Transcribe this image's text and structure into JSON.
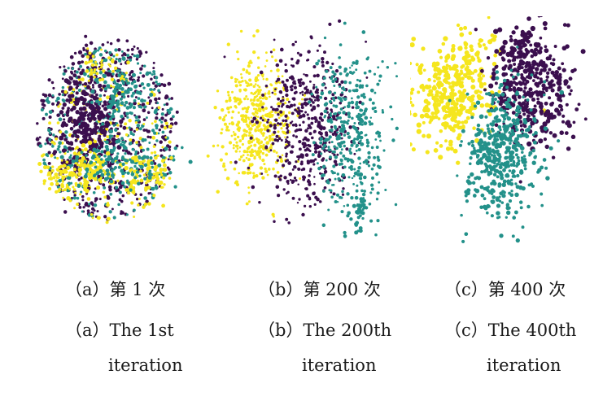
{
  "colors": {
    "purple": "#3b0f4e",
    "teal": "#23918a",
    "yellow": "#f5e61e"
  },
  "chart_data": [
    {
      "type": "scatter",
      "caption_cn": "（a）第 1 次",
      "caption_en": "（a）The 1st",
      "caption_en_2": "iteration",
      "description": "points from three classes heavily intermixed in one oval cloud"
    },
    {
      "type": "scatter",
      "caption_cn": "（b）第 200 次",
      "caption_en": "（b）The 200th",
      "caption_en_2": "iteration",
      "description": "three classes arranged left (yellow), centre (purple), right (teal) with overlap"
    },
    {
      "type": "scatter",
      "caption_cn": "（c）第 400 次",
      "caption_en": "（c）The 400th",
      "caption_en_2": "iteration",
      "description": "three well-separated clusters: yellow upper-left, purple upper-right, teal lower-centre"
    }
  ]
}
